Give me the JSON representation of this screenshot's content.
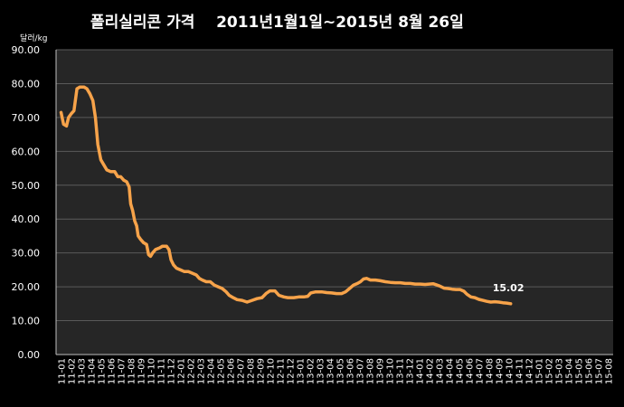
{
  "chart_data": {
    "type": "line",
    "title": "폴리실리콘 가격    2011년1월1일~2015년 8월 26일",
    "ylabel": "달러/kg",
    "xlabel": "",
    "ylim": [
      0,
      90
    ],
    "ytick_step": 10,
    "ytick_labels": [
      "0.00",
      "10.00",
      "20.00",
      "30.00",
      "40.00",
      "50.00",
      "60.00",
      "70.00",
      "80.00",
      "90.00"
    ],
    "categories": [
      "11-01",
      "11-02",
      "11-03",
      "11-04",
      "11-05",
      "11-06",
      "11-07",
      "11-08",
      "11-09",
      "11-10",
      "11-11",
      "11-12",
      "12-01",
      "12-02",
      "12-03",
      "12-04",
      "12-05",
      "12-06",
      "12-07",
      "12-08",
      "12-09",
      "12-10",
      "12-11",
      "12-12",
      "13-01",
      "13-02",
      "13-03",
      "13-04",
      "13-05",
      "13-06",
      "13-07",
      "13-08",
      "13-09",
      "13-10",
      "13-11",
      "13-12",
      "14-01",
      "14-02",
      "14-03",
      "14-04",
      "14-05",
      "14-06",
      "14-07",
      "14-08",
      "14-09",
      "14-10",
      "14-11",
      "14-12",
      "15-01",
      "15-02",
      "15-03",
      "15-04",
      "15-05",
      "15-06",
      "15-07",
      "15-08"
    ],
    "grid": true,
    "series": [
      {
        "color": "#F7A34A",
        "points": [
          [
            0,
            71.5
          ],
          [
            0.25,
            68.0
          ],
          [
            0.55,
            67.5
          ],
          [
            0.75,
            70.0
          ],
          [
            1.0,
            71.0
          ],
          [
            1.3,
            72.0
          ],
          [
            1.6,
            78.5
          ],
          [
            1.9,
            79.0
          ],
          [
            2.3,
            79.0
          ],
          [
            2.6,
            78.5
          ],
          [
            2.9,
            77.0
          ],
          [
            3.2,
            75.0
          ],
          [
            3.45,
            70.0
          ],
          [
            3.7,
            62.0
          ],
          [
            4.0,
            57.5
          ],
          [
            4.3,
            56.0
          ],
          [
            4.6,
            54.5
          ],
          [
            5.0,
            54.0
          ],
          [
            5.4,
            54.0
          ],
          [
            5.7,
            52.5
          ],
          [
            6.0,
            52.5
          ],
          [
            6.3,
            51.5
          ],
          [
            6.6,
            51.0
          ],
          [
            6.85,
            49.5
          ],
          [
            7.0,
            44.5
          ],
          [
            7.2,
            42.5
          ],
          [
            7.4,
            39.5
          ],
          [
            7.6,
            38.0
          ],
          [
            7.75,
            35.0
          ],
          [
            8.0,
            34.0
          ],
          [
            8.3,
            33.0
          ],
          [
            8.6,
            32.5
          ],
          [
            8.8,
            29.5
          ],
          [
            9.0,
            29.0
          ],
          [
            9.2,
            30.0
          ],
          [
            9.5,
            31.0
          ],
          [
            9.9,
            31.5
          ],
          [
            10.2,
            32.0
          ],
          [
            10.6,
            32.0
          ],
          [
            10.85,
            31.0
          ],
          [
            11.05,
            28.0
          ],
          [
            11.3,
            26.5
          ],
          [
            11.6,
            25.5
          ],
          [
            12.0,
            25.0
          ],
          [
            12.4,
            24.5
          ],
          [
            12.8,
            24.5
          ],
          [
            13.2,
            24.0
          ],
          [
            13.6,
            23.5
          ],
          [
            13.9,
            22.5
          ],
          [
            14.2,
            22.0
          ],
          [
            14.6,
            21.5
          ],
          [
            15.0,
            21.5
          ],
          [
            15.4,
            20.5
          ],
          [
            15.8,
            20.0
          ],
          [
            16.2,
            19.5
          ],
          [
            16.6,
            18.5
          ],
          [
            16.9,
            17.5
          ],
          [
            17.3,
            16.8
          ],
          [
            17.7,
            16.2
          ],
          [
            18.2,
            16.0
          ],
          [
            18.7,
            15.5
          ],
          [
            19.2,
            16.0
          ],
          [
            19.7,
            16.5
          ],
          [
            20.2,
            16.8
          ],
          [
            20.6,
            18.0
          ],
          [
            21.0,
            18.8
          ],
          [
            21.5,
            18.8
          ],
          [
            21.9,
            17.5
          ],
          [
            22.4,
            17.0
          ],
          [
            22.8,
            16.8
          ],
          [
            23.4,
            16.8
          ],
          [
            23.9,
            17.0
          ],
          [
            24.4,
            17.0
          ],
          [
            24.8,
            17.2
          ],
          [
            25.1,
            18.2
          ],
          [
            25.6,
            18.5
          ],
          [
            26.2,
            18.5
          ],
          [
            26.7,
            18.3
          ],
          [
            27.2,
            18.2
          ],
          [
            27.7,
            18.0
          ],
          [
            28.2,
            18.0
          ],
          [
            28.6,
            18.5
          ],
          [
            29.0,
            19.5
          ],
          [
            29.4,
            20.5
          ],
          [
            29.8,
            21.0
          ],
          [
            30.1,
            21.5
          ],
          [
            30.4,
            22.3
          ],
          [
            30.7,
            22.5
          ],
          [
            31.1,
            22.0
          ],
          [
            31.6,
            22.0
          ],
          [
            32.1,
            21.8
          ],
          [
            32.6,
            21.5
          ],
          [
            33.1,
            21.3
          ],
          [
            33.6,
            21.2
          ],
          [
            34.1,
            21.2
          ],
          [
            34.6,
            21.0
          ],
          [
            35.1,
            21.0
          ],
          [
            35.6,
            20.8
          ],
          [
            36.1,
            20.8
          ],
          [
            36.6,
            20.7
          ],
          [
            37.0,
            20.8
          ],
          [
            37.4,
            20.9
          ],
          [
            37.8,
            20.5
          ],
          [
            38.1,
            20.2
          ],
          [
            38.5,
            19.6
          ],
          [
            38.9,
            19.5
          ],
          [
            39.3,
            19.3
          ],
          [
            39.7,
            19.2
          ],
          [
            40.1,
            19.2
          ],
          [
            40.5,
            18.7
          ],
          [
            40.8,
            17.8
          ],
          [
            41.2,
            17.0
          ],
          [
            41.6,
            16.8
          ],
          [
            42.0,
            16.3
          ],
          [
            42.4,
            16.0
          ],
          [
            42.8,
            15.7
          ],
          [
            43.2,
            15.5
          ],
          [
            43.6,
            15.6
          ],
          [
            44.0,
            15.5
          ],
          [
            44.4,
            15.3
          ],
          [
            44.8,
            15.2
          ],
          [
            45.2,
            15.02
          ]
        ]
      }
    ],
    "annotations": [
      {
        "text": "15.02",
        "x": 45.2,
        "y": 15.02
      }
    ]
  }
}
